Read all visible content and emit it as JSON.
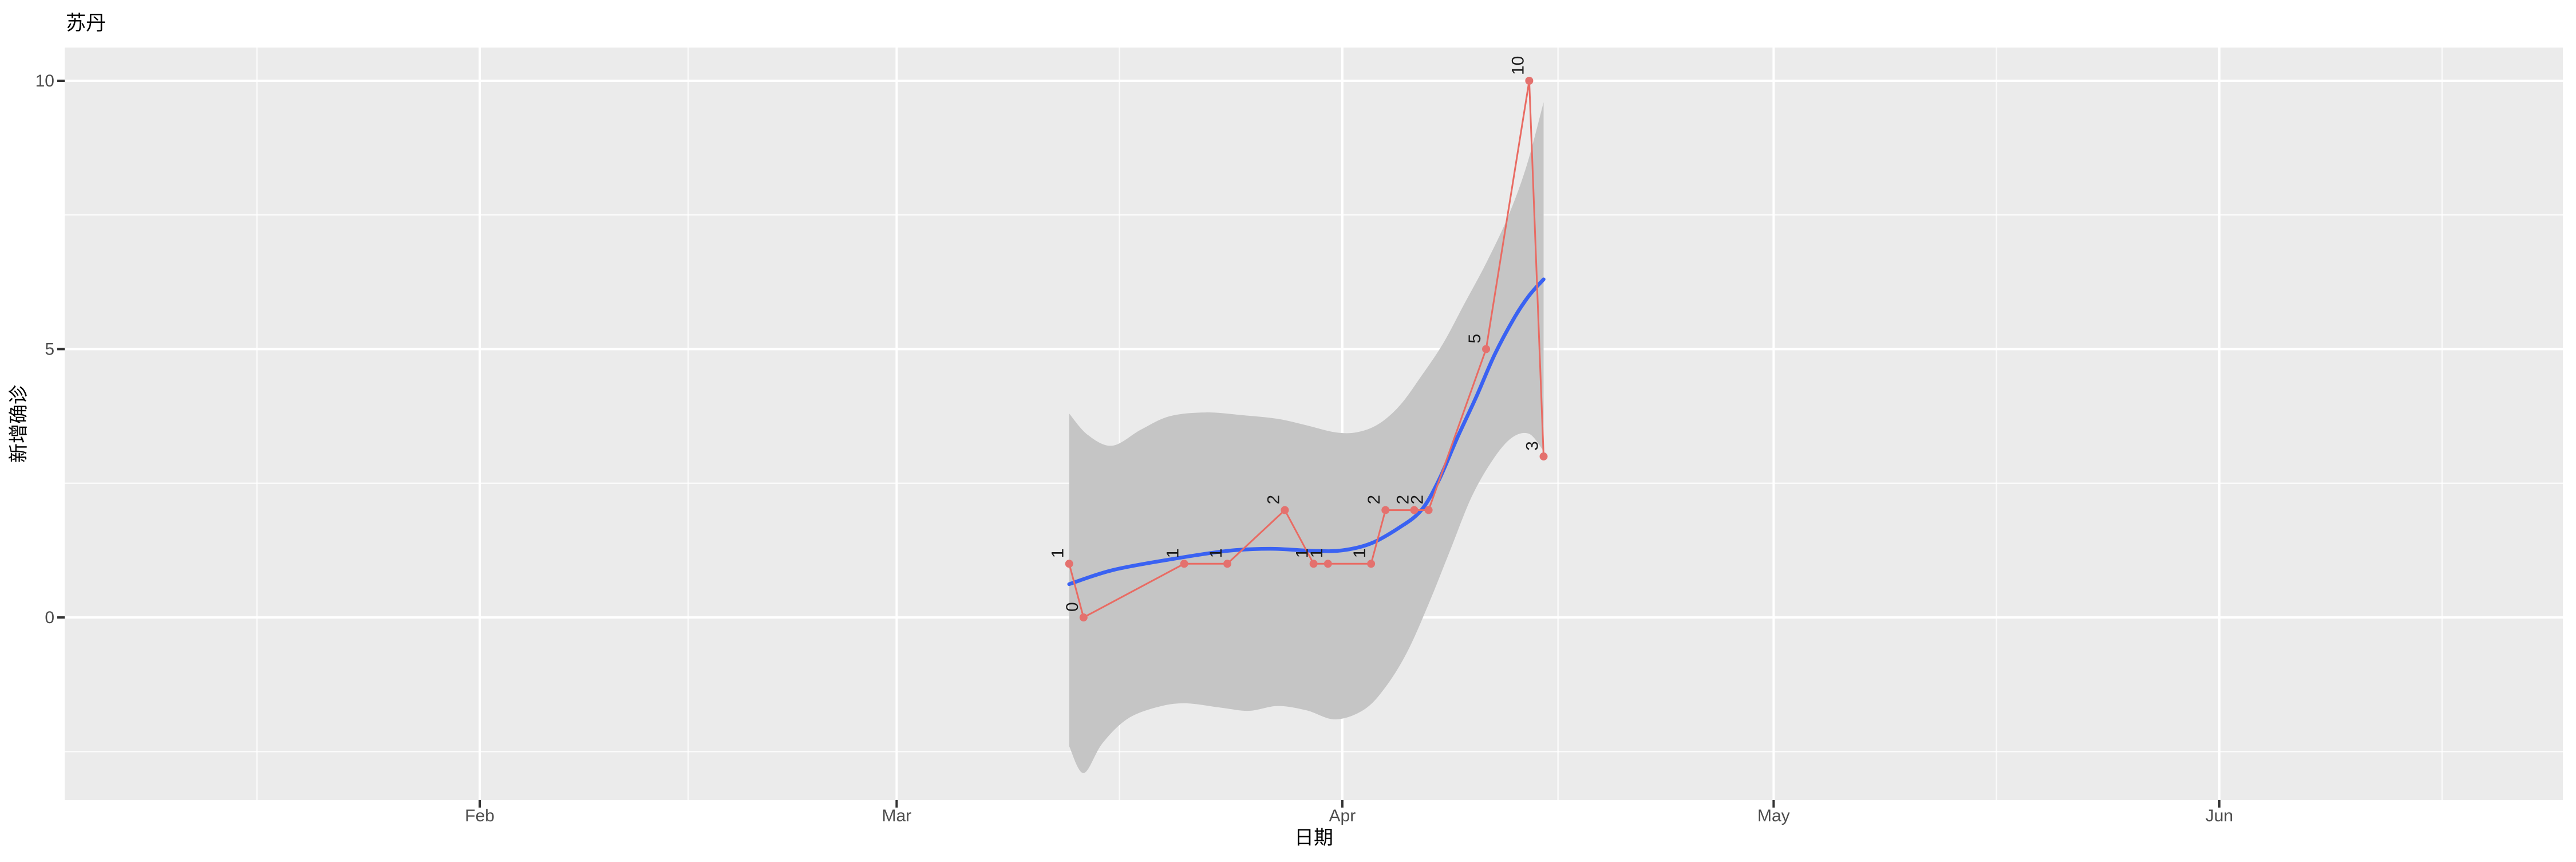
{
  "title": "苏丹",
  "axes": {
    "x": {
      "title": "日期",
      "ticks": [
        {
          "label": "Feb",
          "date": "2020-02-01"
        },
        {
          "label": "Mar",
          "date": "2020-03-01"
        },
        {
          "label": "Apr",
          "date": "2020-04-01"
        },
        {
          "label": "May",
          "date": "2020-05-01"
        },
        {
          "label": "Jun",
          "date": "2020-06-01"
        }
      ]
    },
    "y": {
      "title": "新增确诊",
      "ticks": [
        {
          "label": "0",
          "value": 0
        },
        {
          "label": "5",
          "value": 5
        },
        {
          "label": "10",
          "value": 10
        }
      ],
      "minor": [
        -2.5,
        2.5,
        7.5
      ]
    }
  },
  "colors": {
    "panel_bg": "#ebebeb",
    "grid_major": "#ffffff",
    "grid_minor": "rgba(255,255,255,0.72)",
    "axis_text": "#4d4d4d",
    "tick_mark": "#333333",
    "title_text": "#000000",
    "data_line": "#e96b63",
    "data_point": "#e4716e",
    "point_label": "#1a1a1a",
    "smooth_line": "#3a62f2",
    "ribbon": "#c5c5c5"
  },
  "chart_data": {
    "type": "line",
    "title": "苏丹",
    "xlabel": "日期",
    "ylabel": "新增确诊",
    "x_tick_labels": [
      "Feb",
      "Mar",
      "Apr",
      "May",
      "Jun"
    ],
    "y_ticks": [
      0,
      5,
      10
    ],
    "ylim": [
      -3.41,
      10.62
    ],
    "x_range_dates": [
      "2020-01-03",
      "2020-06-25"
    ],
    "grid": true,
    "legend": false,
    "d_unit": "days since 2020-02-01",
    "series": [
      {
        "name": "daily-new-confirmed",
        "kind": "line+points+labels",
        "points": [
          {
            "date": "2020-03-13",
            "value": 1
          },
          {
            "date": "2020-03-14",
            "value": 0
          },
          {
            "date": "2020-03-21",
            "value": 1
          },
          {
            "date": "2020-03-24",
            "value": 1
          },
          {
            "date": "2020-03-28",
            "value": 2
          },
          {
            "date": "2020-03-30",
            "value": 1
          },
          {
            "date": "2020-03-31",
            "value": 1
          },
          {
            "date": "2020-04-03",
            "value": 1
          },
          {
            "date": "2020-04-04",
            "value": 2
          },
          {
            "date": "2020-04-06",
            "value": 2
          },
          {
            "date": "2020-04-07",
            "value": 2
          },
          {
            "date": "2020-04-11",
            "value": 5
          },
          {
            "date": "2020-04-14",
            "value": 10
          },
          {
            "date": "2020-04-15",
            "value": 3
          }
        ]
      },
      {
        "name": "loess-smooth",
        "kind": "smooth-line",
        "points_dv": [
          [
            41,
            0.62
          ],
          [
            44,
            0.88
          ],
          [
            48,
            1.08
          ],
          [
            52,
            1.24
          ],
          [
            55,
            1.28
          ],
          [
            58,
            1.24
          ],
          [
            60,
            1.25
          ],
          [
            62,
            1.38
          ],
          [
            64,
            1.68
          ],
          [
            65.5,
            2.0
          ],
          [
            66.7,
            2.55
          ],
          [
            68,
            3.35
          ],
          [
            69.3,
            4.1
          ],
          [
            70.6,
            4.9
          ],
          [
            72,
            5.6
          ],
          [
            73,
            6.0
          ],
          [
            74,
            6.3
          ]
        ]
      },
      {
        "name": "confidence-ribbon",
        "kind": "area",
        "upper_dv": [
          [
            41,
            3.8
          ],
          [
            42.3,
            3.4
          ],
          [
            44,
            3.2
          ],
          [
            46,
            3.5
          ],
          [
            48,
            3.75
          ],
          [
            50.5,
            3.82
          ],
          [
            53,
            3.77
          ],
          [
            55.5,
            3.7
          ],
          [
            57.5,
            3.58
          ],
          [
            59.5,
            3.45
          ],
          [
            61,
            3.45
          ],
          [
            62.5,
            3.6
          ],
          [
            64,
            3.95
          ],
          [
            65.5,
            4.5
          ],
          [
            67,
            5.1
          ],
          [
            68.5,
            5.85
          ],
          [
            70,
            6.6
          ],
          [
            71.5,
            7.45
          ],
          [
            72.8,
            8.4
          ],
          [
            74,
            9.6
          ]
        ],
        "lower_dv": [
          [
            41,
            -2.4
          ],
          [
            42,
            -2.9
          ],
          [
            43.3,
            -2.35
          ],
          [
            45,
            -1.9
          ],
          [
            47,
            -1.68
          ],
          [
            49,
            -1.6
          ],
          [
            51.5,
            -1.68
          ],
          [
            53.5,
            -1.74
          ],
          [
            55.5,
            -1.65
          ],
          [
            57.5,
            -1.73
          ],
          [
            59.5,
            -1.9
          ],
          [
            61.5,
            -1.72
          ],
          [
            63,
            -1.3
          ],
          [
            64.5,
            -0.65
          ],
          [
            66,
            0.25
          ],
          [
            67.5,
            1.25
          ],
          [
            69,
            2.25
          ],
          [
            70.5,
            2.95
          ],
          [
            71.8,
            3.35
          ],
          [
            73,
            3.42
          ],
          [
            74,
            3.1
          ]
        ]
      }
    ]
  }
}
